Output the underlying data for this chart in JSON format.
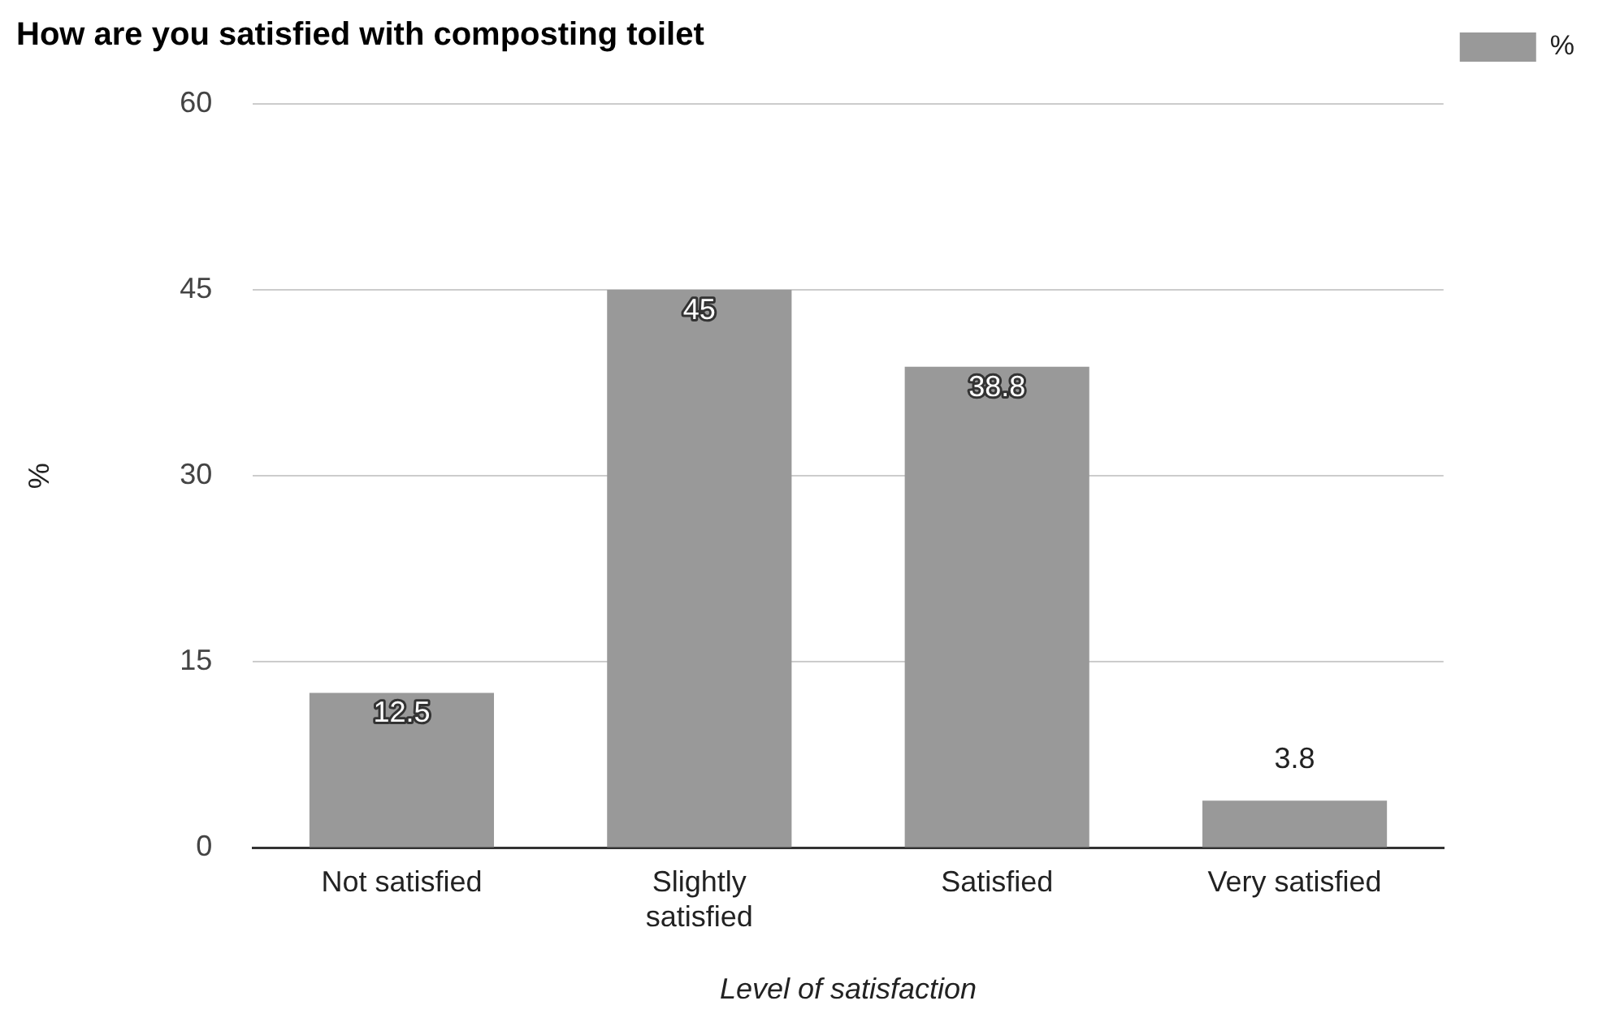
{
  "chart_data": {
    "type": "bar",
    "title": "How are you satisfied with composting toilet",
    "xlabel": "Level of satisfaction",
    "ylabel": "%",
    "categories": [
      "Not satisfied",
      "Slightly satisfied",
      "Satisfied",
      "Very satisfied"
    ],
    "series": [
      {
        "name": "%",
        "color": "#999999",
        "values": [
          12.5,
          45,
          38.8,
          3.8
        ]
      }
    ],
    "ylim": [
      0,
      60
    ],
    "yticks": [
      0,
      15,
      30,
      45,
      60
    ],
    "grid": "y",
    "legend": "top right",
    "data_labels": true
  }
}
